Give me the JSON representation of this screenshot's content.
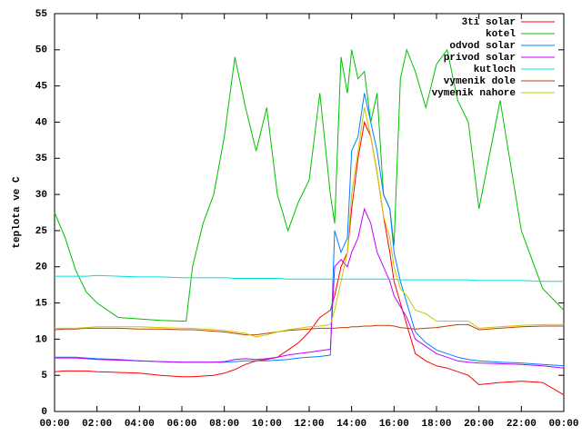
{
  "chart_data": {
    "type": "line",
    "y_label": "teplota ve C",
    "x": [
      0,
      0.5,
      1,
      1.5,
      2,
      3,
      4,
      5,
      6,
      6.2,
      6.5,
      7,
      7.5,
      8,
      8.5,
      9,
      9.5,
      10,
      10.5,
      11,
      11.5,
      12,
      12.5,
      13,
      13.2,
      13.5,
      13.8,
      14,
      14.3,
      14.6,
      14.9,
      15.2,
      15.5,
      15.8,
      16,
      16.3,
      16.6,
      17,
      17.5,
      18,
      18.5,
      19,
      19.5,
      20,
      21,
      22,
      23,
      24
    ],
    "xlim": [
      0,
      24
    ],
    "xticks": [
      {
        "value": 0,
        "label": "00:00"
      },
      {
        "value": 2,
        "label": "02:00"
      },
      {
        "value": 4,
        "label": "04:00"
      },
      {
        "value": 6,
        "label": "06:00"
      },
      {
        "value": 8,
        "label": "08:00"
      },
      {
        "value": 10,
        "label": "10:00"
      },
      {
        "value": 12,
        "label": "12:00"
      },
      {
        "value": 14,
        "label": "14:00"
      },
      {
        "value": 16,
        "label": "16:00"
      },
      {
        "value": 18,
        "label": "18:00"
      },
      {
        "value": 20,
        "label": "20:00"
      },
      {
        "value": 22,
        "label": "22:00"
      },
      {
        "value": 24,
        "label": "00:00"
      }
    ],
    "ylim": [
      0,
      55
    ],
    "yticks": [
      0,
      5,
      10,
      15,
      20,
      25,
      30,
      35,
      40,
      45,
      50,
      55
    ],
    "grid": false,
    "legend": "top-right",
    "series": [
      {
        "name": "3ti solar",
        "color": "#ff0000",
        "values": [
          5.5,
          5.6,
          5.6,
          5.6,
          5.5,
          5.4,
          5.3,
          5,
          4.8,
          4.8,
          4.8,
          4.9,
          5,
          5.3,
          5.8,
          6.5,
          7,
          7.2,
          7.5,
          8.5,
          9.5,
          11,
          13,
          14,
          16,
          20,
          22,
          28,
          35,
          40,
          38,
          33,
          27,
          22,
          18,
          15,
          12,
          8,
          7,
          6.3,
          6,
          5.5,
          5,
          3.7,
          4,
          4.2,
          4,
          2.3
        ]
      },
      {
        "name": "kotel",
        "color": "#00c000",
        "values": [
          27.5,
          24,
          19.5,
          16.5,
          15,
          13,
          12.8,
          12.6,
          12.5,
          12.5,
          20,
          26,
          30,
          38,
          49,
          42,
          36,
          42,
          30,
          25,
          29,
          32,
          44,
          30,
          26,
          49,
          44,
          50,
          46,
          47,
          40,
          44,
          30,
          28,
          23,
          46,
          50,
          47,
          42,
          48,
          50,
          43,
          40,
          28,
          43,
          25,
          17,
          14
        ]
      },
      {
        "name": "odvod solar",
        "color": "#0080ff",
        "values": [
          7.5,
          7.5,
          7.5,
          7.4,
          7.3,
          7.2,
          7,
          6.9,
          6.8,
          6.8,
          6.8,
          6.8,
          6.8,
          6.8,
          6.9,
          7,
          7,
          7,
          7.1,
          7.2,
          7.4,
          7.5,
          7.6,
          7.8,
          25,
          22,
          24,
          36,
          38,
          44,
          40,
          36,
          30,
          28,
          22,
          18,
          15,
          11,
          9.5,
          8.5,
          8,
          7.5,
          7.2,
          7,
          6.8,
          6.7,
          6.5,
          6.3
        ]
      },
      {
        "name": "privod solar",
        "color": "#c000ff",
        "values": [
          7.4,
          7.4,
          7.4,
          7.3,
          7.2,
          7.1,
          7,
          6.9,
          6.8,
          6.8,
          6.8,
          6.8,
          6.8,
          6.9,
          7.2,
          7.3,
          7.2,
          7.3,
          7.5,
          7.8,
          8,
          8.2,
          8.4,
          8.6,
          20,
          21,
          20,
          22,
          24,
          28,
          26,
          22,
          20,
          18,
          16,
          14.5,
          13,
          10,
          9,
          8,
          7.5,
          7,
          6.8,
          6.7,
          6.6,
          6.5,
          6.3,
          6
        ]
      },
      {
        "name": "kutloch",
        "color": "#00e0e0",
        "values": [
          18.7,
          18.7,
          18.7,
          18.7,
          18.8,
          18.7,
          18.6,
          18.6,
          18.5,
          18.5,
          18.5,
          18.5,
          18.5,
          18.5,
          18.4,
          18.4,
          18.4,
          18.4,
          18.4,
          18.3,
          18.3,
          18.3,
          18.3,
          18.3,
          18.3,
          18.3,
          18.3,
          18.3,
          18.3,
          18.3,
          18.3,
          18.3,
          18.3,
          18.3,
          18.3,
          18.2,
          18.2,
          18.2,
          18.2,
          18.2,
          18.2,
          18.2,
          18.2,
          18.1,
          18.1,
          18.1,
          18,
          18
        ]
      },
      {
        "name": "vymenik dole",
        "color": "#c04000",
        "values": [
          11.3,
          11.4,
          11.4,
          11.5,
          11.5,
          11.5,
          11.4,
          11.4,
          11.3,
          11.3,
          11.3,
          11.2,
          11.1,
          11,
          10.8,
          10.6,
          10.6,
          10.8,
          11,
          11.2,
          11.3,
          11.4,
          11.5,
          11.5,
          11.5,
          11.6,
          11.6,
          11.7,
          11.7,
          11.8,
          11.8,
          11.9,
          11.9,
          11.9,
          11.8,
          11.6,
          11.5,
          11.4,
          11.5,
          11.6,
          11.8,
          12,
          12,
          11.3,
          11.5,
          11.7,
          11.8,
          11.8
        ]
      },
      {
        "name": "vymenik nahore",
        "color": "#c8c800",
        "values": [
          11.5,
          11.5,
          11.5,
          11.6,
          11.7,
          11.7,
          11.7,
          11.6,
          11.5,
          11.5,
          11.5,
          11.4,
          11.3,
          11.2,
          11,
          10.8,
          10.3,
          10.6,
          11,
          11.3,
          11.5,
          11.7,
          11.8,
          12,
          14,
          18,
          22,
          30,
          36,
          42,
          38,
          33,
          27,
          24,
          20,
          17,
          16,
          14,
          13.5,
          12.5,
          12.5,
          12.5,
          12.5,
          11.5,
          11.7,
          11.9,
          12,
          12
        ]
      }
    ]
  }
}
